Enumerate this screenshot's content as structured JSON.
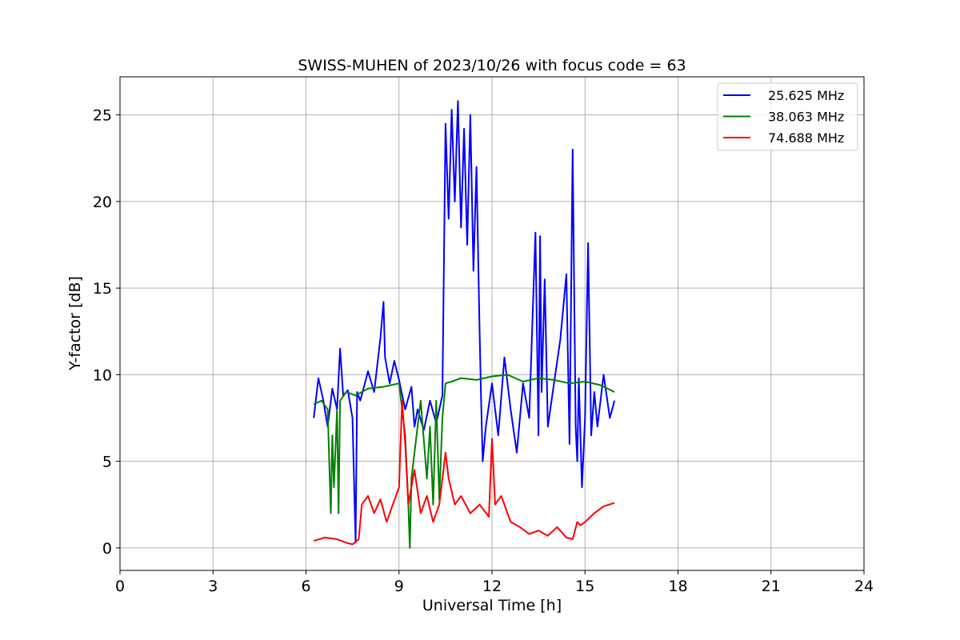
{
  "chart_data": {
    "type": "line",
    "title": "SWISS-MUHEN of 2023/10/26 with focus code = 63",
    "xlabel": "Universal Time [h]",
    "ylabel": "Y-factor [dB]",
    "xlim": [
      0,
      24
    ],
    "ylim": [
      -1.3,
      27.2
    ],
    "xticks": [
      0,
      3,
      6,
      9,
      12,
      15,
      18,
      21,
      24
    ],
    "yticks": [
      0,
      5,
      10,
      15,
      20,
      25
    ],
    "grid": true,
    "legend_position": "top-right",
    "series": [
      {
        "name": "25.625 MHz",
        "color": "#0000ff",
        "x": [
          6.25,
          6.4,
          6.55,
          6.7,
          6.85,
          7.0,
          7.1,
          7.2,
          7.35,
          7.5,
          7.6,
          7.65,
          7.75,
          7.9,
          8.0,
          8.2,
          8.4,
          8.5,
          8.55,
          8.7,
          8.85,
          9.0,
          9.2,
          9.4,
          9.5,
          9.6,
          9.8,
          10.0,
          10.2,
          10.4,
          10.5,
          10.6,
          10.7,
          10.8,
          10.9,
          11.0,
          11.1,
          11.2,
          11.3,
          11.4,
          11.5,
          11.6,
          11.65,
          11.7,
          11.8,
          12.0,
          12.2,
          12.4,
          12.6,
          12.8,
          13.0,
          13.2,
          13.4,
          13.5,
          13.55,
          13.6,
          13.7,
          13.8,
          14.0,
          14.2,
          14.4,
          14.5,
          14.6,
          14.7,
          14.75,
          14.8,
          14.9,
          15.0,
          15.1,
          15.2,
          15.3,
          15.4,
          15.6,
          15.8,
          15.95
        ],
        "y": [
          7.5,
          9.8,
          8.6,
          7.0,
          9.2,
          8.0,
          11.5,
          8.8,
          9.1,
          7.5,
          0.3,
          9.0,
          8.5,
          9.5,
          10.2,
          9.0,
          12.1,
          14.2,
          11.0,
          9.5,
          10.8,
          9.7,
          8.0,
          9.3,
          7.0,
          8.0,
          6.8,
          8.5,
          7.2,
          8.8,
          24.5,
          19.0,
          25.3,
          20.0,
          25.8,
          18.5,
          24.2,
          17.5,
          25.0,
          16.0,
          22.0,
          12.5,
          8.5,
          5.0,
          7.0,
          9.5,
          6.5,
          11.0,
          8.0,
          5.5,
          9.5,
          7.5,
          18.2,
          6.5,
          18.0,
          9.0,
          15.5,
          7.0,
          9.5,
          12.0,
          15.8,
          6.0,
          23.0,
          7.0,
          5.0,
          9.8,
          3.5,
          7.5,
          17.6,
          6.5,
          9.0,
          7.0,
          10.0,
          7.5,
          8.5
        ]
      },
      {
        "name": "38.063 MHz",
        "color": "#008000",
        "x": [
          6.25,
          6.5,
          6.7,
          6.8,
          6.85,
          6.9,
          7.0,
          7.05,
          7.1,
          7.3,
          7.6,
          8.0,
          8.5,
          9.0,
          9.2,
          9.3,
          9.35,
          9.4,
          9.5,
          9.7,
          9.9,
          10.0,
          10.1,
          10.2,
          10.3,
          10.4,
          10.5,
          10.7,
          11.0,
          11.5,
          12.0,
          12.5,
          13.0,
          13.5,
          14.0,
          14.5,
          15.0,
          15.5,
          15.95
        ],
        "y": [
          8.3,
          8.5,
          8.0,
          2.0,
          6.5,
          3.5,
          8.0,
          2.0,
          8.5,
          9.0,
          8.8,
          9.2,
          9.3,
          9.5,
          6.5,
          2.5,
          0.0,
          4.0,
          5.5,
          8.5,
          4.0,
          7.0,
          2.5,
          8.5,
          2.8,
          7.5,
          9.5,
          9.6,
          9.8,
          9.7,
          9.9,
          10.0,
          9.6,
          9.8,
          9.7,
          9.5,
          9.6,
          9.4,
          9.0
        ]
      },
      {
        "name": "74.688 MHz",
        "color": "#ff0000",
        "x": [
          6.25,
          6.6,
          7.0,
          7.3,
          7.5,
          7.7,
          7.8,
          8.0,
          8.2,
          8.4,
          8.6,
          8.8,
          9.0,
          9.1,
          9.2,
          9.3,
          9.5,
          9.7,
          9.9,
          10.1,
          10.3,
          10.5,
          10.6,
          10.8,
          11.0,
          11.3,
          11.6,
          11.9,
          12.0,
          12.1,
          12.3,
          12.6,
          12.9,
          13.2,
          13.5,
          13.8,
          14.1,
          14.4,
          14.6,
          14.75,
          14.85,
          15.0,
          15.3,
          15.6,
          15.95
        ],
        "y": [
          0.4,
          0.6,
          0.5,
          0.3,
          0.2,
          0.5,
          2.5,
          3.0,
          2.0,
          2.8,
          1.5,
          2.5,
          3.5,
          8.5,
          6.0,
          2.5,
          4.5,
          2.0,
          3.0,
          1.5,
          2.5,
          5.5,
          4.0,
          2.5,
          3.0,
          2.0,
          2.5,
          1.8,
          6.3,
          2.5,
          3.0,
          1.5,
          1.2,
          0.8,
          1.0,
          0.7,
          1.2,
          0.6,
          0.5,
          1.5,
          1.3,
          1.5,
          2.0,
          2.4,
          2.6
        ]
      }
    ]
  }
}
